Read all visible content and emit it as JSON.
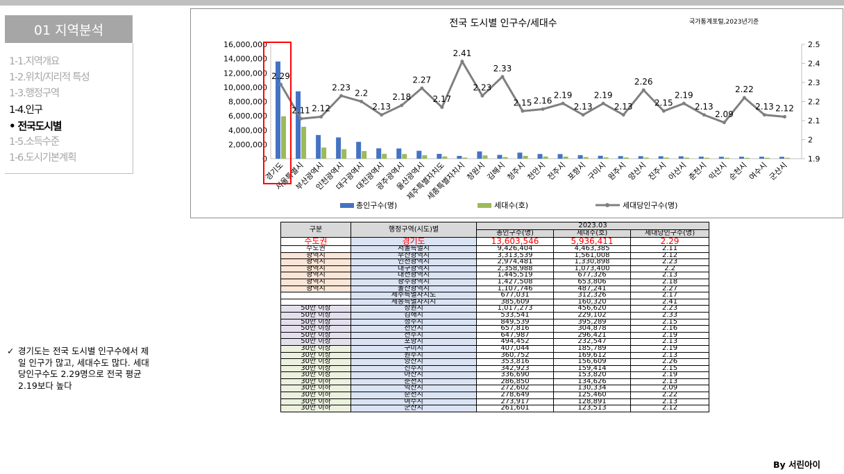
{
  "sidebar": {
    "title": "01 지역분석",
    "items": [
      {
        "label": "1-1.지역개요",
        "state": "inactive"
      },
      {
        "label": "1-2.위치/지리적 특성",
        "state": "inactive"
      },
      {
        "label": "1-3.행정구역",
        "state": "inactive"
      },
      {
        "label": "1-4.인구",
        "state": "active"
      },
      {
        "label": "•  전국도시별",
        "state": "sub"
      },
      {
        "label": "1-5.소득수준",
        "state": "inactive"
      },
      {
        "label": "1-6.도시기본계획",
        "state": "inactive"
      }
    ]
  },
  "note": {
    "check": "✓",
    "text": "경기도는 전국 도시별 인구수에서 제일 인구가 많고, 세대수도 많다. 세대당인구수도 2.29명으로 전국 평균 2.19보다 높다"
  },
  "byline": "By 서린아이",
  "colors": {
    "bar_population": "#4472c4",
    "bar_households": "#9bbb59",
    "line": "#7f7f7f",
    "highlight": "#ff0000"
  },
  "chart_data": {
    "type": "bar",
    "title": "전국 도시별 인구수/세대수",
    "source": "국가통계포털,2023년기준",
    "categories": [
      "경기도",
      "서울특별시",
      "부산광역시",
      "인천광역시",
      "대구광역시",
      "대전광역시",
      "광주광역시",
      "울산광역시",
      "제주특별자치도",
      "세종특별자치시",
      "창원시",
      "김해시",
      "청주시",
      "천안시",
      "전주시",
      "포항시",
      "구미시",
      "원주시",
      "양산시",
      "진주시",
      "아산시",
      "춘천시",
      "익산시",
      "순천시",
      "여수시",
      "군산시"
    ],
    "series": [
      {
        "name": "총인구수(명)",
        "axis": "left",
        "type": "bar",
        "values": [
          13603546,
          9426404,
          3313539,
          2974481,
          2358988,
          1445519,
          1427508,
          1107746,
          677031,
          385609,
          1017273,
          533541,
          849539,
          657816,
          647987,
          494452,
          407044,
          360752,
          353816,
          342923,
          336690,
          286850,
          272602,
          278649,
          273917,
          261601
        ]
      },
      {
        "name": "세대수(호)",
        "axis": "left",
        "type": "bar",
        "values": [
          5936411,
          4463385,
          1561008,
          1330898,
          1073400,
          677326,
          653806,
          487241,
          312326,
          160320,
          456620,
          229102,
          395289,
          304878,
          296421,
          232547,
          185789,
          169612,
          156609,
          159414,
          153820,
          134626,
          130334,
          125460,
          128891,
          123513
        ]
      },
      {
        "name": "세대당인구수(명)",
        "axis": "right",
        "type": "line",
        "values": [
          2.29,
          2.11,
          2.12,
          2.23,
          2.2,
          2.13,
          2.18,
          2.27,
          2.17,
          2.41,
          2.23,
          2.33,
          2.15,
          2.16,
          2.19,
          2.13,
          2.19,
          2.13,
          2.26,
          2.15,
          2.19,
          2.13,
          2.09,
          2.22,
          2.13,
          2.12
        ]
      }
    ],
    "y_left": {
      "min": 0,
      "max": 16000000,
      "ticks": [
        "0",
        "2,000,000",
        "4,000,000",
        "6,000,000",
        "8,000,000",
        "10,000,000",
        "12,000,000",
        "14,000,000",
        "16,000,000"
      ]
    },
    "y_right": {
      "min": 1.9,
      "max": 2.5,
      "ticks": [
        "1.9",
        "2",
        "2.1",
        "2.2",
        "2.3",
        "2.4",
        "2.5"
      ]
    },
    "legend_position": "bottom",
    "highlight_category": "경기도",
    "grid": false
  },
  "table": {
    "header": {
      "col1": "구분",
      "col2": "행정구역(시도)별",
      "period": "2023.03",
      "col3": "총인구수(명)",
      "col4": "세대수(호)",
      "col5": "세대당인구수(명)"
    },
    "rows": [
      {
        "cat": "수도권",
        "cls": "cat-white",
        "region": "경기도",
        "pop": "13,603,546",
        "hh": "5,936,411",
        "ratio": "2.29",
        "hl": true
      },
      {
        "cat": "수도권",
        "cls": "cat-white",
        "region": "서울특별시",
        "pop": "9,426,404",
        "hh": "4,463,385",
        "ratio": "2.11"
      },
      {
        "cat": "광역시",
        "cls": "cat-orange",
        "region": "부산광역시",
        "pop": "3,313,539",
        "hh": "1,561,008",
        "ratio": "2.12"
      },
      {
        "cat": "광역시",
        "cls": "cat-orange",
        "region": "인천광역시",
        "pop": "2,974,481",
        "hh": "1,330,898",
        "ratio": "2.23"
      },
      {
        "cat": "광역시",
        "cls": "cat-orange",
        "region": "대구광역시",
        "pop": "2,358,988",
        "hh": "1,073,400",
        "ratio": "2.2"
      },
      {
        "cat": "광역시",
        "cls": "cat-orange",
        "region": "대전광역시",
        "pop": "1,445,519",
        "hh": "677,326",
        "ratio": "2.13"
      },
      {
        "cat": "광역시",
        "cls": "cat-orange",
        "region": "광주광역시",
        "pop": "1,427,508",
        "hh": "653,806",
        "ratio": "2.18"
      },
      {
        "cat": "광역시",
        "cls": "cat-orange",
        "region": "울산광역시",
        "pop": "1,107,746",
        "hh": "487,241",
        "ratio": "2.27"
      },
      {
        "cat": "",
        "cls": "cat-white",
        "region": "제주특별자치도",
        "pop": "677,031",
        "hh": "312,326",
        "ratio": "2.17"
      },
      {
        "cat": "",
        "cls": "cat-white",
        "region": "세종특별자치시",
        "pop": "385,609",
        "hh": "160,320",
        "ratio": "2.41"
      },
      {
        "cat": "50만 이상",
        "cls": "cat-purple",
        "region": "창원시",
        "pop": "1,017,273",
        "hh": "456,620",
        "ratio": "2.23"
      },
      {
        "cat": "50만 이상",
        "cls": "cat-purple",
        "region": "김해시",
        "pop": "533,541",
        "hh": "229,102",
        "ratio": "2.33"
      },
      {
        "cat": "50만 이상",
        "cls": "cat-purple",
        "region": "청주시",
        "pop": "849,539",
        "hh": "395,289",
        "ratio": "2.15"
      },
      {
        "cat": "50만 이상",
        "cls": "cat-purple",
        "region": "천안시",
        "pop": "657,816",
        "hh": "304,878",
        "ratio": "2.16"
      },
      {
        "cat": "50만 이상",
        "cls": "cat-purple",
        "region": "전주시",
        "pop": "647,987",
        "hh": "296,421",
        "ratio": "2.19"
      },
      {
        "cat": "50만 이상",
        "cls": "cat-purple",
        "region": "포항시",
        "pop": "494,452",
        "hh": "232,547",
        "ratio": "2.13"
      },
      {
        "cat": "30만 이상",
        "cls": "cat-green",
        "region": "구미시",
        "pop": "407,044",
        "hh": "185,789",
        "ratio": "2.19"
      },
      {
        "cat": "30만 이상",
        "cls": "cat-green",
        "region": "원주시",
        "pop": "360,752",
        "hh": "169,612",
        "ratio": "2.13"
      },
      {
        "cat": "30만 이상",
        "cls": "cat-green",
        "region": "양산시",
        "pop": "353,816",
        "hh": "156,609",
        "ratio": "2.26"
      },
      {
        "cat": "30만 이상",
        "cls": "cat-green",
        "region": "진주시",
        "pop": "342,923",
        "hh": "159,414",
        "ratio": "2.15"
      },
      {
        "cat": "30만 이상",
        "cls": "cat-green",
        "region": "아산시",
        "pop": "336,690",
        "hh": "153,820",
        "ratio": "2.19"
      },
      {
        "cat": "30만 이하",
        "cls": "cat-green",
        "region": "춘천시",
        "pop": "286,850",
        "hh": "134,626",
        "ratio": "2.13"
      },
      {
        "cat": "30만 이하",
        "cls": "cat-green",
        "region": "익산시",
        "pop": "272,602",
        "hh": "130,334",
        "ratio": "2.09"
      },
      {
        "cat": "30만 이하",
        "cls": "cat-green",
        "region": "순천시",
        "pop": "278,649",
        "hh": "125,460",
        "ratio": "2.22"
      },
      {
        "cat": "30만 이하",
        "cls": "cat-green",
        "region": "여수시",
        "pop": "273,917",
        "hh": "128,891",
        "ratio": "2.13"
      },
      {
        "cat": "30만 이하",
        "cls": "cat-green",
        "region": "군산시",
        "pop": "261,601",
        "hh": "123,513",
        "ratio": "2.12"
      }
    ]
  }
}
